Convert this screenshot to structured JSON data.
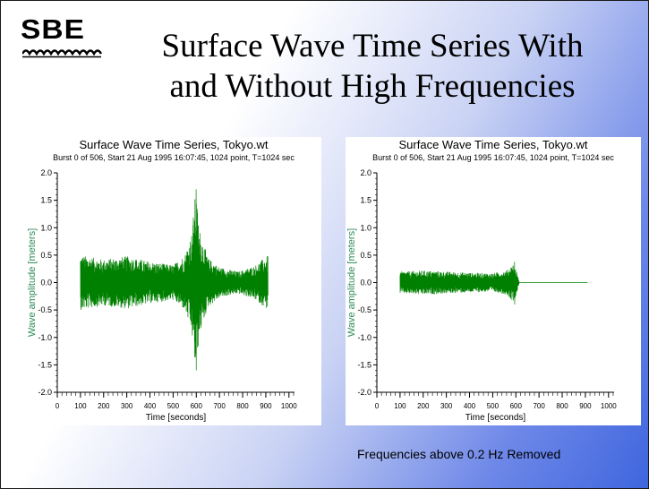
{
  "slide": {
    "logo": "SBE",
    "title_line1": "Surface Wave Time Series With",
    "title_line2": "and Without High Frequencies",
    "caption": "Frequencies above 0.2 Hz Removed",
    "colors": {
      "series": "#008000",
      "axis_label": "#2e8b57"
    }
  },
  "chart_data": [
    {
      "type": "line",
      "title": "Surface Wave Time Series, Tokyo.wt",
      "subtitle": "Burst 0 of 506, Start 21 Aug 1995 16:07:45, 1024 point, T=1024 sec",
      "xlabel": "Time [seconds]",
      "ylabel": "Wave amplitude [meters]",
      "xlim": [
        0,
        1024
      ],
      "ylim": [
        -2.0,
        2.0
      ],
      "xticks": [
        "0",
        "100",
        "200",
        "300",
        "400",
        "500",
        "600",
        "700",
        "800",
        "900",
        "1000"
      ],
      "yticks": [
        "2.0",
        "1.5",
        "1.0",
        "0.5",
        "0.0",
        "-0.5",
        "-1.0",
        "-1.5",
        "-2.0"
      ],
      "grid": false,
      "series_color": "#008000",
      "envelope": [
        {
          "x": 100,
          "amp": 0.5
        },
        {
          "x": 200,
          "amp": 0.42
        },
        {
          "x": 300,
          "amp": 0.48
        },
        {
          "x": 400,
          "amp": 0.38
        },
        {
          "x": 500,
          "amp": 0.32
        },
        {
          "x": 550,
          "amp": 0.5
        },
        {
          "x": 580,
          "amp": 0.9
        },
        {
          "x": 598,
          "amp": 1.7
        },
        {
          "x": 612,
          "amp": 1.0
        },
        {
          "x": 650,
          "amp": 0.45
        },
        {
          "x": 700,
          "amp": 0.28
        },
        {
          "x": 780,
          "amp": 0.2
        },
        {
          "x": 850,
          "amp": 0.3
        },
        {
          "x": 910,
          "amp": 0.5
        }
      ],
      "extremes": {
        "max": 1.7,
        "min": -1.6,
        "min_x": 600
      }
    },
    {
      "type": "line",
      "title": "Surface Wave Time Series, Tokyo.wt",
      "subtitle": "Burst 0 of 506, Start 21 Aug 1995 16:07:45, 1024 point, T=1024 sec",
      "xlabel": "Time [seconds]",
      "ylabel": "Wave amplitude [meters]",
      "xlim": [
        0,
        1024
      ],
      "ylim": [
        -2.0,
        2.0
      ],
      "xticks": [
        "0",
        "100",
        "200",
        "300",
        "400",
        "500",
        "600",
        "700",
        "800",
        "900",
        "1000"
      ],
      "yticks": [
        "2.0",
        "1.5",
        "1.0",
        "0.5",
        "0.0",
        "-0.5",
        "-1.0",
        "-1.5",
        "-2.0"
      ],
      "grid": false,
      "series_color": "#008000",
      "envelope": [
        {
          "x": 100,
          "amp": 0.2
        },
        {
          "x": 200,
          "amp": 0.22
        },
        {
          "x": 300,
          "amp": 0.2
        },
        {
          "x": 400,
          "amp": 0.18
        },
        {
          "x": 500,
          "amp": 0.17
        },
        {
          "x": 560,
          "amp": 0.22
        },
        {
          "x": 590,
          "amp": 0.35
        },
        {
          "x": 605,
          "amp": 0.18
        },
        {
          "x": 615,
          "amp": 0.0
        },
        {
          "x": 910,
          "amp": 0.0
        }
      ],
      "extremes": {
        "max": 0.38,
        "min": -0.4,
        "min_x": 595
      }
    }
  ]
}
